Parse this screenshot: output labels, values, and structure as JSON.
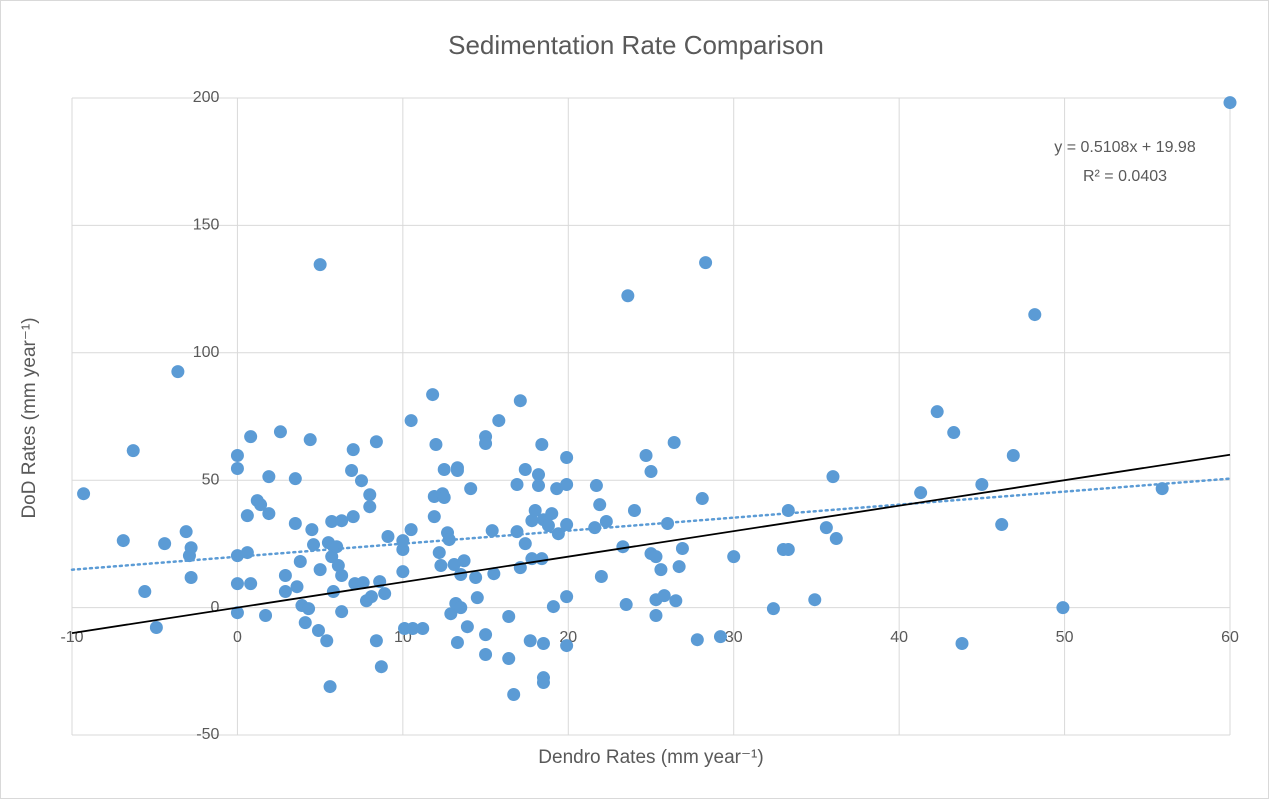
{
  "chart_data": {
    "type": "scatter",
    "title": "Sedimentation Rate Comparison",
    "x_label": "Dendro Rates (mm year⁻¹)",
    "y_label": "DoD Rates (mm year⁻¹)",
    "xlim": [
      -10,
      60
    ],
    "ylim": [
      -50,
      200
    ],
    "xticks": [
      -10,
      0,
      10,
      20,
      30,
      40,
      50,
      60
    ],
    "yticks": [
      -50,
      0,
      50,
      100,
      150,
      200
    ],
    "grid": true,
    "series": [
      {
        "color": "#5b9bd5",
        "x": [
          -9.3,
          -6.9,
          -6.3,
          -5.6,
          -4.9,
          -4.4,
          -3.6,
          -3.1,
          -2.9,
          -2.8,
          -2.8,
          0,
          0,
          0,
          0,
          0,
          0.6,
          0.6,
          0.8,
          0.8,
          1.2,
          1.4,
          1.7,
          1.9,
          1.9,
          2.6,
          2.9,
          2.9,
          3.5,
          3.5,
          3.6,
          3.8,
          3.9,
          4.1,
          4.3,
          4.4,
          4.5,
          4.6,
          4.9,
          5.0,
          5.0,
          5.4,
          5.6,
          5.5,
          5.7,
          5.7,
          5.8,
          6.0,
          6.1,
          6.3,
          6.3,
          6.3,
          6.9,
          7.0,
          7.0,
          7.1,
          7.5,
          7.6,
          7.8,
          8.0,
          8.0,
          8.1,
          8.4,
          8.4,
          8.6,
          8.7,
          8.9,
          9.1,
          10.0,
          10.0,
          10.0,
          10.1,
          10.5,
          10.5,
          10.6,
          11.2,
          11.8,
          11.9,
          11.9,
          12.0,
          12.2,
          12.3,
          12.4,
          12.5,
          12.5,
          12.7,
          12.8,
          12.9,
          13.1,
          13.2,
          13.3,
          13.3,
          13.3,
          13.5,
          13.5,
          13.7,
          13.9,
          14.1,
          14.4,
          14.5,
          15.0,
          15.0,
          15.0,
          15.0,
          15.4,
          15.5,
          15.8,
          16.4,
          16.4,
          16.7,
          16.9,
          16.9,
          17.1,
          17.1,
          17.4,
          17.4,
          17.7,
          17.8,
          17.8,
          18.0,
          18.2,
          18.2,
          18.4,
          18.4,
          18.5,
          18.5,
          18.5,
          18.5,
          18.8,
          19.0,
          19.1,
          19.3,
          19.4,
          19.9,
          19.9,
          19.9,
          19.9,
          19.9,
          21.6,
          21.7,
          21.9,
          22.0,
          22.3,
          23.3,
          23.5,
          23.6,
          24.0,
          24.7,
          25.0,
          25.0,
          25.3,
          25.3,
          25.3,
          25.6,
          25.8,
          26.0,
          26.4,
          26.5,
          26.7,
          26.9,
          27.8,
          28.1,
          28.3,
          29.2,
          30.0,
          32.4,
          33.0,
          33.3,
          33.3,
          34.9,
          35.6,
          36.0,
          36.2,
          41.3,
          42.3,
          43.3,
          43.8,
          45.0,
          46.2,
          46.9,
          48.2,
          49.9,
          55.9,
          60.0
        ],
        "values": [
          44.7,
          26.3,
          61.6,
          6.3,
          -7.8,
          25.1,
          92.6,
          29.8,
          20.4,
          23.5,
          11.8,
          59.7,
          54.6,
          20.4,
          9.4,
          -2,
          36.1,
          21.6,
          9.4,
          67.1,
          42,
          40.4,
          -3.1,
          51.4,
          36.9,
          69,
          6.3,
          12.6,
          33,
          50.6,
          8.2,
          18.1,
          0.8,
          -5.9,
          -0.4,
          65.9,
          30.6,
          24.7,
          -9,
          134.6,
          14.9,
          -13,
          -31,
          25.5,
          33.8,
          20,
          6.3,
          23.9,
          16.5,
          12.6,
          34.1,
          -1.6,
          53.8,
          62,
          35.7,
          9.4,
          49.8,
          9.8,
          2.7,
          44.3,
          39.6,
          4.3,
          65.1,
          -13,
          10.2,
          -23.2,
          5.5,
          27.9,
          22.8,
          26.3,
          14.1,
          -8.2,
          73.4,
          30.6,
          -8.2,
          -8.2,
          83.6,
          43.6,
          35.7,
          64,
          21.6,
          16.5,
          44.7,
          54.2,
          43.2,
          29.4,
          26.7,
          -2.4,
          16.9,
          1.6,
          54.9,
          53.8,
          -13.7,
          0,
          13,
          18.4,
          -7.5,
          46.7,
          11.8,
          3.9,
          67.1,
          64.4,
          -10.6,
          -18.4,
          30.2,
          13.3,
          73.4,
          -3.5,
          -20,
          -34.1,
          48.3,
          29.8,
          81.2,
          15.7,
          54.2,
          25.1,
          -13,
          19.2,
          34.1,
          38.1,
          52.2,
          47.9,
          64,
          19.2,
          -14.1,
          -27.5,
          -29.4,
          34.5,
          32.2,
          36.9,
          0.4,
          46.7,
          29,
          58.9,
          48.3,
          32.6,
          4.3,
          -14.9,
          31.4,
          47.9,
          40.4,
          12.2,
          33.8,
          23.9,
          1.2,
          122.4,
          38.1,
          59.7,
          21.2,
          53.4,
          20,
          3.1,
          -3.1,
          14.9,
          4.7,
          33,
          64.8,
          2.7,
          16.1,
          23.2,
          -12.6,
          42.8,
          135.4,
          -11.4,
          20,
          -0.4,
          22.8,
          22.8,
          38.1,
          3.1,
          31.4,
          51.4,
          27.1,
          45.1,
          76.9,
          68.7,
          -14.1,
          48.3,
          32.6,
          59.7,
          115,
          0,
          46.7,
          198.2
        ]
      }
    ],
    "trendline": {
      "slope": 0.5108,
      "intercept": 19.98,
      "color": "#5b9bd5",
      "equation": "y = 0.5108x + 19.98",
      "r_squared_label": "R² = 0.0403"
    },
    "reference_line": {
      "x": [
        -10,
        60
      ],
      "y": [
        -10,
        60
      ],
      "color": "#000000"
    }
  }
}
